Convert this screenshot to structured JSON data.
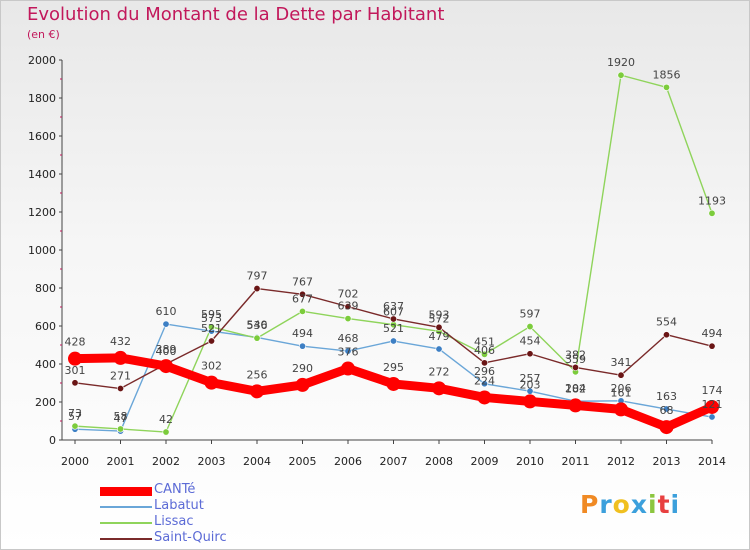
{
  "title": "Evolution du Montant de la Dette par Habitant",
  "subtitle": "(en €)",
  "logo_text": "Proxiti",
  "logo_colors": [
    "#f08a24",
    "#3ca0dc",
    "#f0c020",
    "#3ca0dc",
    "#8cc63f",
    "#e84040",
    "#3ca0dc"
  ],
  "chart_data": {
    "type": "line",
    "x": [
      "2000",
      "2001",
      "2002",
      "2003",
      "2004",
      "2005",
      "2006",
      "2007",
      "2008",
      "2009",
      "2010",
      "2011",
      "2012",
      "2013",
      "2014"
    ],
    "ylim": [
      0,
      2000
    ],
    "yticks": [
      "0",
      "200",
      "400",
      "600",
      "800",
      "1000",
      "1200",
      "1400",
      "1600",
      "1800",
      "2000"
    ],
    "grid": false,
    "legend_position": "bottom-left",
    "series": [
      {
        "name": "CANTé",
        "color": "#ff0000",
        "markerColor": "#ff0000",
        "values": [
          428,
          432,
          389,
          302,
          256,
          290,
          376,
          295,
          272,
          224,
          203,
          182,
          161,
          68,
          174
        ]
      },
      {
        "name": "Labatut",
        "color": "#6aa6d8",
        "markerColor": "#3d7fc4",
        "values": [
          57,
          47,
          610,
          573,
          540,
          494,
          468,
          521,
          479,
          296,
          257,
          204,
          206,
          163,
          121
        ]
      },
      {
        "name": "Lissac",
        "color": "#8fd45b",
        "markerColor": "#7ccc3c",
        "values": [
          73,
          58,
          42,
          595,
          536,
          677,
          639,
          607,
          572,
          451,
          597,
          359,
          1920,
          1856,
          1193
        ]
      },
      {
        "name": "Saint-Quirc",
        "color": "#7a2a2a",
        "markerColor": "#6a1515",
        "values": [
          301,
          271,
          400,
          521,
          797,
          767,
          702,
          637,
          593,
          406,
          454,
          382,
          341,
          554,
          494
        ]
      }
    ]
  }
}
